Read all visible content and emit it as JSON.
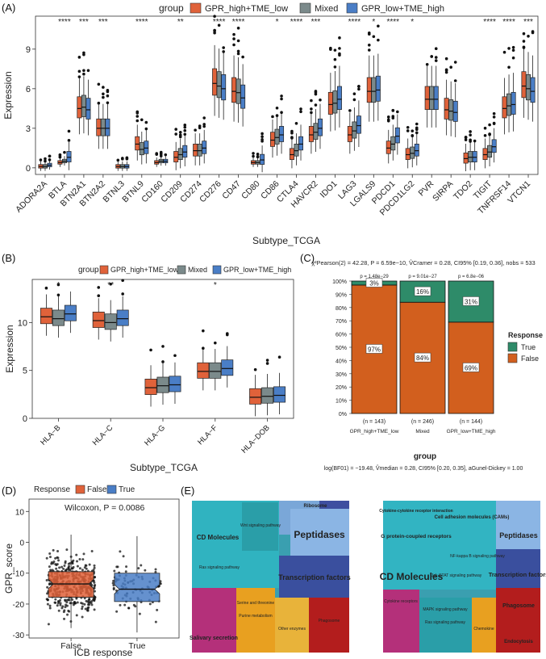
{
  "colors": {
    "high": "#e0623a",
    "mixed": "#7b8a8b",
    "low": "#4a7ec6",
    "true_col": "#2e8b69",
    "false_col": "#d25f1e"
  },
  "panel_labels": [
    "(A)",
    "(B)",
    "(C)",
    "(D)",
    "(E)"
  ],
  "legend": {
    "title": "group",
    "items": [
      "GPR_high+TME_low",
      "Mixed",
      "GPR_low+TME_high"
    ]
  },
  "chart_data": [
    {
      "panel": "A",
      "type": "box",
      "xlabel": "Subtype_TCGA",
      "ylabel": "Expression",
      "ylim": [
        -0.5,
        11.5
      ],
      "yticks": [
        0,
        3,
        6,
        9
      ],
      "categories": [
        "ADORA2A",
        "BTLA",
        "BTN2A1",
        "BTN2A2",
        "BTNL3",
        "BTNL9",
        "CD160",
        "CD209",
        "CD274",
        "CD276",
        "CD47",
        "CD80",
        "CD86",
        "CTLA4",
        "HAVCR2",
        "IDO1",
        "LAG3",
        "LGALS9",
        "PDCD1",
        "PDCD1LG2",
        "PVR",
        "SIRPA",
        "TDO2",
        "TIGIT",
        "TNFRSF14",
        "VTCN1"
      ],
      "significance": [
        "",
        "****",
        "***",
        "***",
        "",
        "****",
        "",
        "**",
        "",
        "****",
        "****",
        "",
        "*",
        "****",
        "***",
        "",
        "****",
        "*",
        "****",
        "*",
        "",
        "",
        "",
        "****",
        "****",
        "***"
      ],
      "series": [
        {
          "name": "GPR_high+TME_low",
          "medians": [
            0.1,
            0.4,
            4.5,
            3.0,
            0.1,
            1.8,
            0.4,
            0.8,
            1.3,
            6.4,
            5.8,
            0.4,
            2.1,
            1.0,
            2.5,
            4.8,
            2.5,
            5.8,
            1.5,
            1.0,
            5.2,
            4.4,
            0.7,
            1.0,
            4.5,
            6.2
          ]
        },
        {
          "name": "Mixed",
          "medians": [
            0.1,
            0.5,
            4.6,
            3.0,
            0.1,
            1.4,
            0.5,
            1.0,
            1.3,
            6.2,
            5.7,
            0.4,
            2.3,
            1.3,
            2.7,
            4.9,
            2.8,
            5.8,
            1.8,
            1.1,
            5.2,
            4.3,
            0.8,
            1.2,
            4.7,
            6.0
          ]
        },
        {
          "name": "GPR_low+TME_high",
          "medians": [
            0.2,
            0.8,
            4.4,
            3.0,
            0.1,
            1.5,
            0.5,
            1.2,
            1.5,
            6.0,
            5.3,
            0.6,
            2.5,
            1.8,
            3.0,
            5.2,
            3.2,
            5.9,
            2.4,
            1.3,
            5.2,
            4.2,
            0.8,
            1.6,
            4.8,
            5.8
          ]
        }
      ]
    },
    {
      "panel": "B",
      "type": "box",
      "xlabel": "Subtype_TCGA",
      "ylabel": "Expression",
      "ylim": [
        0,
        14.5
      ],
      "yticks": [
        0,
        5,
        10
      ],
      "categories": [
        "HLA−B",
        "HLA−C",
        "HLA−G",
        "HLA−F",
        "HLA−DOB"
      ],
      "significance": [
        "*",
        "**",
        "",
        "*",
        ""
      ],
      "series": [
        {
          "name": "GPR_high+TME_low",
          "medians": [
            10.6,
            10.2,
            3.2,
            4.9,
            2.2
          ]
        },
        {
          "name": "Mixed",
          "medians": [
            10.4,
            10.0,
            3.4,
            4.9,
            2.3
          ]
        },
        {
          "name": "GPR_low+TME_high",
          "medians": [
            10.9,
            10.4,
            3.5,
            5.2,
            2.4
          ]
        }
      ]
    },
    {
      "panel": "C",
      "type": "stacked-bar",
      "title": "χ²Pearson(2) = 42.28, P = 6.59e−10, V̂Cramer = 0.28, CI95% [0.19, 0.36], nobs = 533",
      "subtitle": "log(BF01) = −19.48, V̂median = 0.28, CI95% [0.20, 0.35], aGunel-Dickey = 1.00",
      "xlabel": "group",
      "yticks": [
        "0%",
        "10%",
        "20%",
        "30%",
        "40%",
        "50%",
        "60%",
        "70%",
        "80%",
        "90%",
        "100%"
      ],
      "categories": [
        "GPR_high+TME_low",
        "Mixed",
        "GPR_low+TME_high"
      ],
      "n_labels": [
        "(n = 143)",
        "(n = 246)",
        "(n = 144)"
      ],
      "p_labels": [
        "p = 1.48e−29",
        "p = 9.01e−27",
        "p = 6.8e−06"
      ],
      "series": [
        {
          "name": "False",
          "values": [
            97,
            84,
            69
          ],
          "labels": [
            "97%",
            "84%",
            "69%"
          ]
        },
        {
          "name": "True",
          "values": [
            3,
            16,
            31
          ],
          "labels": [
            "3%",
            "16%",
            "31%"
          ]
        }
      ],
      "legend_title": "Response",
      "legend_items": [
        "True",
        "False"
      ]
    },
    {
      "panel": "D",
      "type": "box-scatter",
      "annotation": "Wilcoxon, P = 0.0086",
      "xlabel": "ICB response",
      "ylabel": "GPR_score",
      "ylim": [
        -31,
        14
      ],
      "yticks": [
        10,
        0,
        -10,
        -20,
        -30
      ],
      "categories": [
        "False",
        "True"
      ],
      "legend_title": "Response",
      "legend_items": [
        "False",
        "True"
      ],
      "medians": [
        -13.5,
        -15.2
      ],
      "q1": [
        -17.8,
        -19.2
      ],
      "q3": [
        -9.5,
        -10.0
      ]
    }
  ],
  "panelE": {
    "left": {
      "big": [
        "Peptidases",
        "Transcription factors",
        "CD Molecules"
      ],
      "small": [
        "Ribosome",
        "Salivary secretion",
        "Wnt signaling pathway",
        "Ras signaling pathway",
        "Serine and threonine",
        "Purine metabolism",
        "Phagosome",
        "Other enzymes"
      ]
    },
    "right": {
      "big": [
        "Peptidases",
        "Transcription factors",
        "CD Molecules",
        "G protein-coupled receptors",
        "Cell adhesion molecules (CAMs)",
        "Cytokine-cytokine receptor interaction"
      ],
      "small": [
        "NF-kappa B signaling pathway",
        "Jak-STAT signaling pathway",
        "Phagosome",
        "Endocytosis",
        "Cytokine receptors",
        "MAPK signaling pathway",
        "Ras signaling pathway",
        "Chemokine"
      ]
    }
  }
}
